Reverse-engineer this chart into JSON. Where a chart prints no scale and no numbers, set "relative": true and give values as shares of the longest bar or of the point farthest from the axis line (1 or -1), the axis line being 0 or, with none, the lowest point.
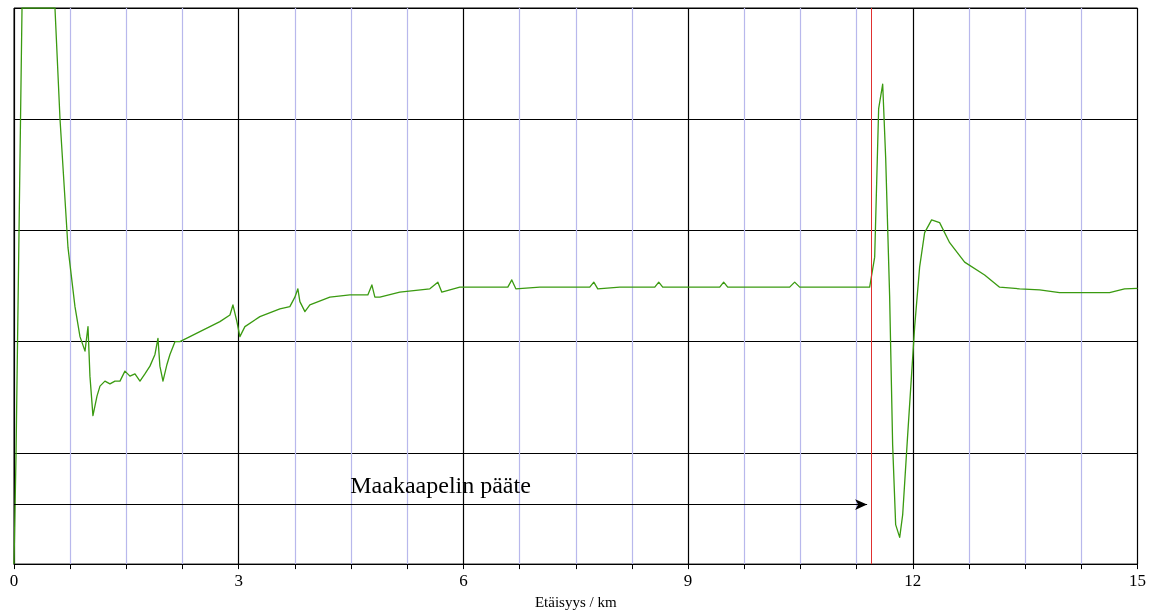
{
  "chart_data": {
    "type": "line",
    "relative": true,
    "xlabel": "Etäisyys / km",
    "xlim": [
      0,
      15
    ],
    "xticks": [
      0,
      {
        "value": 0.75,
        "label": null
      },
      {
        "value": 1.5,
        "label": null
      },
      {
        "value": 2.25,
        "label": null
      },
      3,
      {
        "value": 3.75,
        "label": null
      },
      {
        "value": 4.5,
        "label": null
      },
      {
        "value": 5.25,
        "label": null
      },
      6,
      {
        "value": 6.75,
        "label": null
      },
      {
        "value": 7.5,
        "label": null
      },
      {
        "value": 8.25,
        "label": null
      },
      9,
      {
        "value": 9.75,
        "label": null
      },
      {
        "value": 10.5,
        "label": null
      },
      {
        "value": 11.25,
        "label": null
      },
      12,
      {
        "value": 12.75,
        "label": null
      },
      {
        "value": 13.5,
        "label": null
      },
      {
        "value": 14.25,
        "label": null
      },
      15
    ],
    "grid": true,
    "marker": "none",
    "line_style": "solid",
    "ref_lines": [
      {
        "axis": "x",
        "value": 11.44,
        "color": "#e03030"
      }
    ],
    "annotations": [
      "Maakaapelin pääte"
    ],
    "series": [
      {
        "color": "#3a9a10",
        "x": [
          0,
          0.027,
          0.107,
          0.547,
          0.614,
          0.721,
          0.814,
          0.881,
          0.948,
          0.988,
          1.014,
          1.054,
          1.108,
          1.148,
          1.214,
          1.281,
          1.348,
          1.415,
          1.481,
          1.548,
          1.615,
          1.682,
          1.748,
          1.815,
          1.882,
          1.922,
          1.948,
          1.989,
          2.042,
          2.082,
          2.149,
          2.215,
          2.349,
          2.482,
          2.616,
          2.749,
          2.883,
          2.923,
          2.976,
          3.016,
          3.083,
          3.283,
          3.55,
          3.683,
          3.75,
          3.79,
          3.817,
          3.884,
          3.95,
          4.217,
          4.484,
          4.724,
          4.778,
          4.818,
          4.885,
          5.151,
          5.552,
          5.659,
          5.712,
          5.952,
          6.219,
          6.593,
          6.646,
          6.7,
          7.02,
          7.687,
          7.741,
          7.794,
          8.088,
          8.555,
          8.608,
          8.661,
          9.422,
          9.475,
          9.529,
          10.356,
          10.423,
          10.49,
          11.424,
          11.491,
          11.544,
          11.598,
          11.638,
          11.691,
          11.731,
          11.771,
          11.825,
          11.865,
          11.931,
          12.025,
          12.091,
          12.158,
          12.251,
          12.358,
          12.492,
          12.692,
          12.959,
          13.159,
          13.426,
          13.693,
          13.96,
          14.227,
          14.627,
          14.827,
          15
        ],
        "values": [
          0,
          0.196,
          1,
          1,
          0.801,
          0.569,
          0.463,
          0.409,
          0.383,
          0.427,
          0.338,
          0.267,
          0.302,
          0.32,
          0.329,
          0.324,
          0.329,
          0.329,
          0.347,
          0.338,
          0.342,
          0.329,
          0.342,
          0.356,
          0.377,
          0.406,
          0.356,
          0.329,
          0.359,
          0.377,
          0.4,
          0.4,
          0.409,
          0.418,
          0.427,
          0.436,
          0.448,
          0.466,
          0.436,
          0.409,
          0.427,
          0.445,
          0.459,
          0.463,
          0.48,
          0.495,
          0.472,
          0.454,
          0.466,
          0.48,
          0.484,
          0.484,
          0.502,
          0.48,
          0.48,
          0.489,
          0.495,
          0.507,
          0.489,
          0.498,
          0.498,
          0.498,
          0.511,
          0.495,
          0.498,
          0.498,
          0.507,
          0.495,
          0.498,
          0.498,
          0.507,
          0.498,
          0.498,
          0.507,
          0.498,
          0.498,
          0.507,
          0.498,
          0.498,
          0.552,
          0.819,
          0.863,
          0.73,
          0.48,
          0.214,
          0.071,
          0.048,
          0.089,
          0.231,
          0.427,
          0.534,
          0.596,
          0.619,
          0.614,
          0.578,
          0.543,
          0.52,
          0.498,
          0.495,
          0.493,
          0.488,
          0.488,
          0.488,
          0.495,
          0.496
        ]
      }
    ]
  }
}
